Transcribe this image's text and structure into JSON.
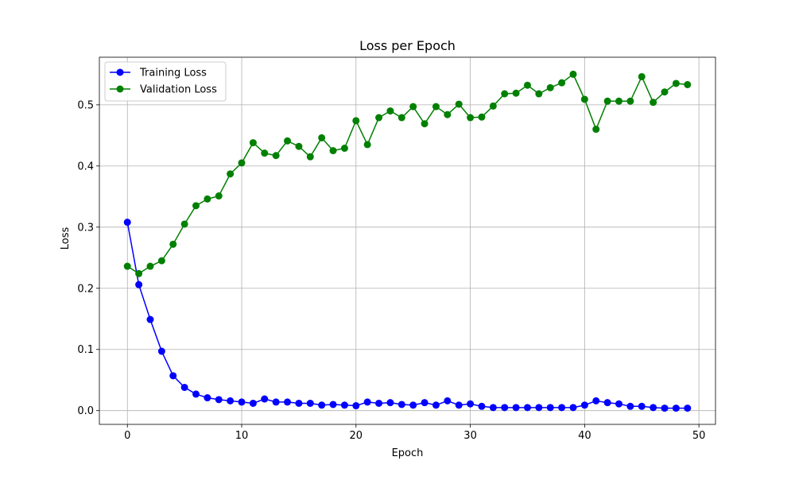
{
  "chart_data": {
    "type": "line",
    "title": "Loss per Epoch",
    "xlabel": "Epoch",
    "ylabel": "Loss",
    "xlim": [
      -2.45,
      51.45
    ],
    "ylim": [
      -0.0225,
      0.5778
    ],
    "xticks": [
      0,
      10,
      20,
      30,
      40,
      50
    ],
    "yticks": [
      0.0,
      0.1,
      0.2,
      0.3,
      0.4,
      0.5
    ],
    "grid": true,
    "legend_position": "top-left",
    "x": [
      0,
      1,
      2,
      3,
      4,
      5,
      6,
      7,
      8,
      9,
      10,
      11,
      12,
      13,
      14,
      15,
      16,
      17,
      18,
      19,
      20,
      21,
      22,
      23,
      24,
      25,
      26,
      27,
      28,
      29,
      30,
      31,
      32,
      33,
      34,
      35,
      36,
      37,
      38,
      39,
      40,
      41,
      42,
      43,
      44,
      45,
      46,
      47,
      48,
      49
    ],
    "series": [
      {
        "name": "Training Loss",
        "color": "#0000ff",
        "values": [
          0.308,
          0.206,
          0.149,
          0.097,
          0.057,
          0.038,
          0.027,
          0.021,
          0.018,
          0.016,
          0.014,
          0.012,
          0.019,
          0.014,
          0.014,
          0.012,
          0.012,
          0.009,
          0.01,
          0.009,
          0.008,
          0.014,
          0.012,
          0.013,
          0.01,
          0.009,
          0.013,
          0.009,
          0.016,
          0.009,
          0.011,
          0.007,
          0.005,
          0.005,
          0.005,
          0.005,
          0.005,
          0.005,
          0.005,
          0.005,
          0.009,
          0.016,
          0.013,
          0.011,
          0.007,
          0.007,
          0.005,
          0.004,
          0.004,
          0.004
        ]
      },
      {
        "name": "Validation Loss",
        "color": "#008000",
        "values": [
          0.236,
          0.224,
          0.236,
          0.245,
          0.272,
          0.305,
          0.335,
          0.346,
          0.351,
          0.387,
          0.405,
          0.438,
          0.421,
          0.417,
          0.441,
          0.432,
          0.415,
          0.446,
          0.425,
          0.429,
          0.474,
          0.435,
          0.479,
          0.49,
          0.479,
          0.497,
          0.469,
          0.497,
          0.484,
          0.501,
          0.479,
          0.48,
          0.498,
          0.518,
          0.519,
          0.532,
          0.518,
          0.528,
          0.536,
          0.55,
          0.509,
          0.46,
          0.506,
          0.506,
          0.506,
          0.546,
          0.504,
          0.521,
          0.535,
          0.533
        ]
      }
    ]
  }
}
